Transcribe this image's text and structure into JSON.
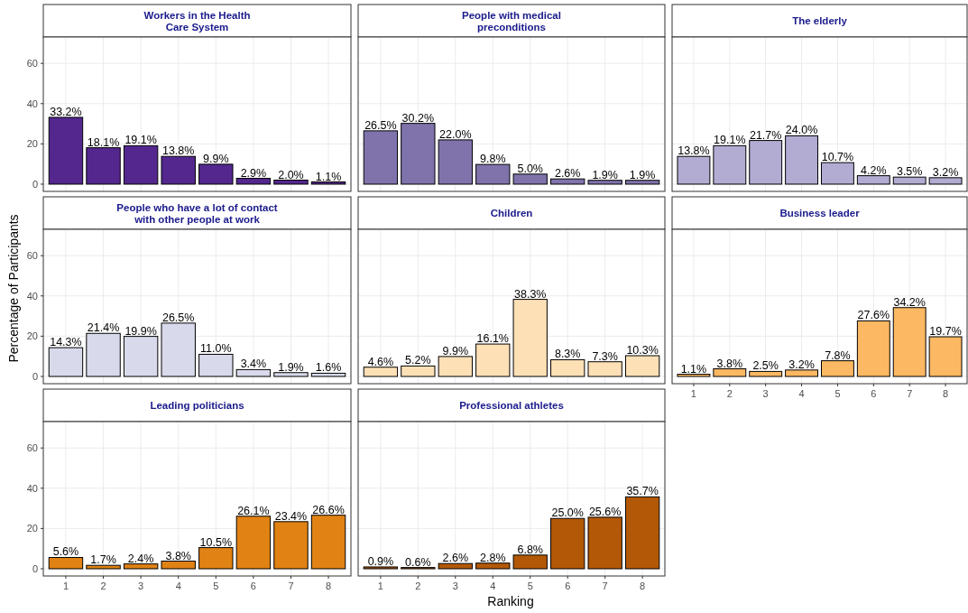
{
  "chart_data": [
    {
      "type": "bar",
      "title": "Workers in the Health\nCare System",
      "categories": [
        "1",
        "2",
        "3",
        "4",
        "5",
        "6",
        "7",
        "8"
      ],
      "values": [
        33.2,
        18.1,
        19.1,
        13.8,
        9.9,
        2.9,
        2.0,
        1.1
      ],
      "value_labels": [
        "33.2%",
        "18.1%",
        "19.1%",
        "13.8%",
        "9.9%",
        "2.9%",
        "2.0%",
        "1.1%"
      ],
      "color": "#54278f",
      "ylim": [
        -3.6,
        73.1
      ],
      "yticks": [
        0,
        20,
        40,
        60
      ],
      "grid": true,
      "tick_labels": "y"
    },
    {
      "type": "bar",
      "title": "People with medical\npreconditions",
      "categories": [
        "1",
        "2",
        "3",
        "4",
        "5",
        "6",
        "7",
        "8"
      ],
      "values": [
        26.5,
        30.2,
        22.0,
        9.8,
        5.0,
        2.6,
        1.9,
        1.9
      ],
      "value_labels": [
        "26.5%",
        "30.2%",
        "22.0%",
        "9.8%",
        "5.0%",
        "2.6%",
        "1.9%",
        "1.9%"
      ],
      "color": "#8073ac",
      "ylim": [
        -3.6,
        73.1
      ],
      "yticks": [
        0,
        20,
        40,
        60
      ],
      "grid": true,
      "tick_labels": false
    },
    {
      "type": "bar",
      "title": "The elderly",
      "categories": [
        "1",
        "2",
        "3",
        "4",
        "5",
        "6",
        "7",
        "8"
      ],
      "values": [
        13.8,
        19.1,
        21.7,
        24.0,
        10.7,
        4.2,
        3.5,
        3.2
      ],
      "value_labels": [
        "13.8%",
        "19.1%",
        "21.7%",
        "24.0%",
        "10.7%",
        "4.2%",
        "3.5%",
        "3.2%"
      ],
      "color": "#b2abd2",
      "ylim": [
        -3.6,
        73.1
      ],
      "yticks": [
        0,
        20,
        40,
        60
      ],
      "grid": true,
      "tick_labels": false
    },
    {
      "type": "bar",
      "title": "People who have a lot of contact\nwith other people at work",
      "categories": [
        "1",
        "2",
        "3",
        "4",
        "5",
        "6",
        "7",
        "8"
      ],
      "values": [
        14.3,
        21.4,
        19.9,
        26.5,
        11.0,
        3.4,
        1.9,
        1.6
      ],
      "value_labels": [
        "14.3%",
        "21.4%",
        "19.9%",
        "26.5%",
        "11.0%",
        "3.4%",
        "1.9%",
        "1.6%"
      ],
      "color": "#d8daeb",
      "ylim": [
        -3.6,
        73.1
      ],
      "yticks": [
        0,
        20,
        40,
        60
      ],
      "grid": true,
      "tick_labels": "y",
      "ylabel": "Percentage of Participants"
    },
    {
      "type": "bar",
      "title": "Children",
      "categories": [
        "1",
        "2",
        "3",
        "4",
        "5",
        "6",
        "7",
        "8"
      ],
      "values": [
        4.6,
        5.2,
        9.9,
        16.1,
        38.3,
        8.3,
        7.3,
        10.3
      ],
      "value_labels": [
        "4.6%",
        "5.2%",
        "9.9%",
        "16.1%",
        "38.3%",
        "8.3%",
        "7.3%",
        "10.3%"
      ],
      "color": "#fee0b6",
      "ylim": [
        -3.6,
        73.1
      ],
      "yticks": [
        0,
        20,
        40,
        60
      ],
      "grid": true,
      "tick_labels": false
    },
    {
      "type": "bar",
      "title": "Business leader",
      "categories": [
        "1",
        "2",
        "3",
        "4",
        "5",
        "6",
        "7",
        "8"
      ],
      "values": [
        1.1,
        3.8,
        2.5,
        3.2,
        7.8,
        27.6,
        34.2,
        19.7
      ],
      "value_labels": [
        "1.1%",
        "3.8%",
        "2.5%",
        "3.2%",
        "7.8%",
        "27.6%",
        "34.2%",
        "19.7%"
      ],
      "color": "#fdb863",
      "ylim": [
        -3.6,
        73.1
      ],
      "yticks": [
        0,
        20,
        40,
        60
      ],
      "grid": true,
      "tick_labels": "x"
    },
    {
      "type": "bar",
      "title": "Leading politicians",
      "categories": [
        "1",
        "2",
        "3",
        "4",
        "5",
        "6",
        "7",
        "8"
      ],
      "values": [
        5.6,
        1.7,
        2.4,
        3.8,
        10.5,
        26.1,
        23.4,
        26.6
      ],
      "value_labels": [
        "5.6%",
        "1.7%",
        "2.4%",
        "3.8%",
        "10.5%",
        "26.1%",
        "23.4%",
        "26.6%"
      ],
      "color": "#e08214",
      "ylim": [
        -3.6,
        73.1
      ],
      "yticks": [
        0,
        20,
        40,
        60
      ],
      "grid": true
    },
    {
      "type": "bar",
      "title": "Professional athletes",
      "categories": [
        "1",
        "2",
        "3",
        "4",
        "5",
        "6",
        "7",
        "8"
      ],
      "values": [
        0.9,
        0.6,
        2.6,
        2.8,
        6.8,
        25.0,
        25.6,
        35.7
      ],
      "value_labels": [
        "0.9%",
        "0.6%",
        "2.6%",
        "2.8%",
        "6.8%",
        "25.0%",
        "25.6%",
        "35.7%"
      ],
      "color": "#b35806",
      "ylim": [
        -3.6,
        73.1
      ],
      "yticks": [
        0,
        20,
        40,
        60
      ],
      "grid": true,
      "tick_labels": "x",
      "xlabel": "Ranking"
    }
  ]
}
